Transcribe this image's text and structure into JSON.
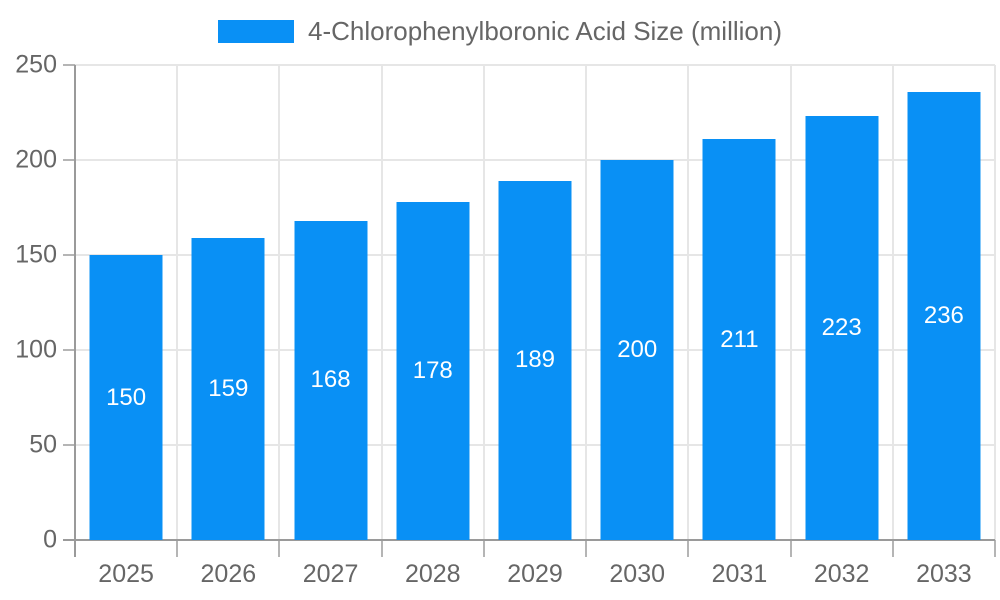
{
  "legend": {
    "label": "4-Chlorophenylboronic Acid Size (million)"
  },
  "chart_data": {
    "type": "bar",
    "title": "",
    "xlabel": "",
    "ylabel": "",
    "categories": [
      "2025",
      "2026",
      "2027",
      "2028",
      "2029",
      "2030",
      "2031",
      "2032",
      "2033"
    ],
    "series": [
      {
        "name": "4-Chlorophenylboronic Acid Size (million)",
        "values": [
          150,
          159,
          168,
          178,
          189,
          200,
          211,
          223,
          236
        ]
      }
    ],
    "data_labels": [
      "150",
      "159",
      "168",
      "178",
      "189",
      "200",
      "211",
      "223",
      "236"
    ],
    "ylim": [
      0,
      250
    ],
    "yticks": [
      0,
      50,
      100,
      150,
      200,
      250
    ],
    "grid": true,
    "legend_position": "top",
    "colors": {
      "bar": "#0990f5",
      "axis": "#9a9a9a",
      "gridline": "#e6e6e6",
      "tick": "#b5b5b5",
      "axis_text": "#666666",
      "bar_label_text": "#ffffff",
      "background": "#ffffff"
    }
  }
}
